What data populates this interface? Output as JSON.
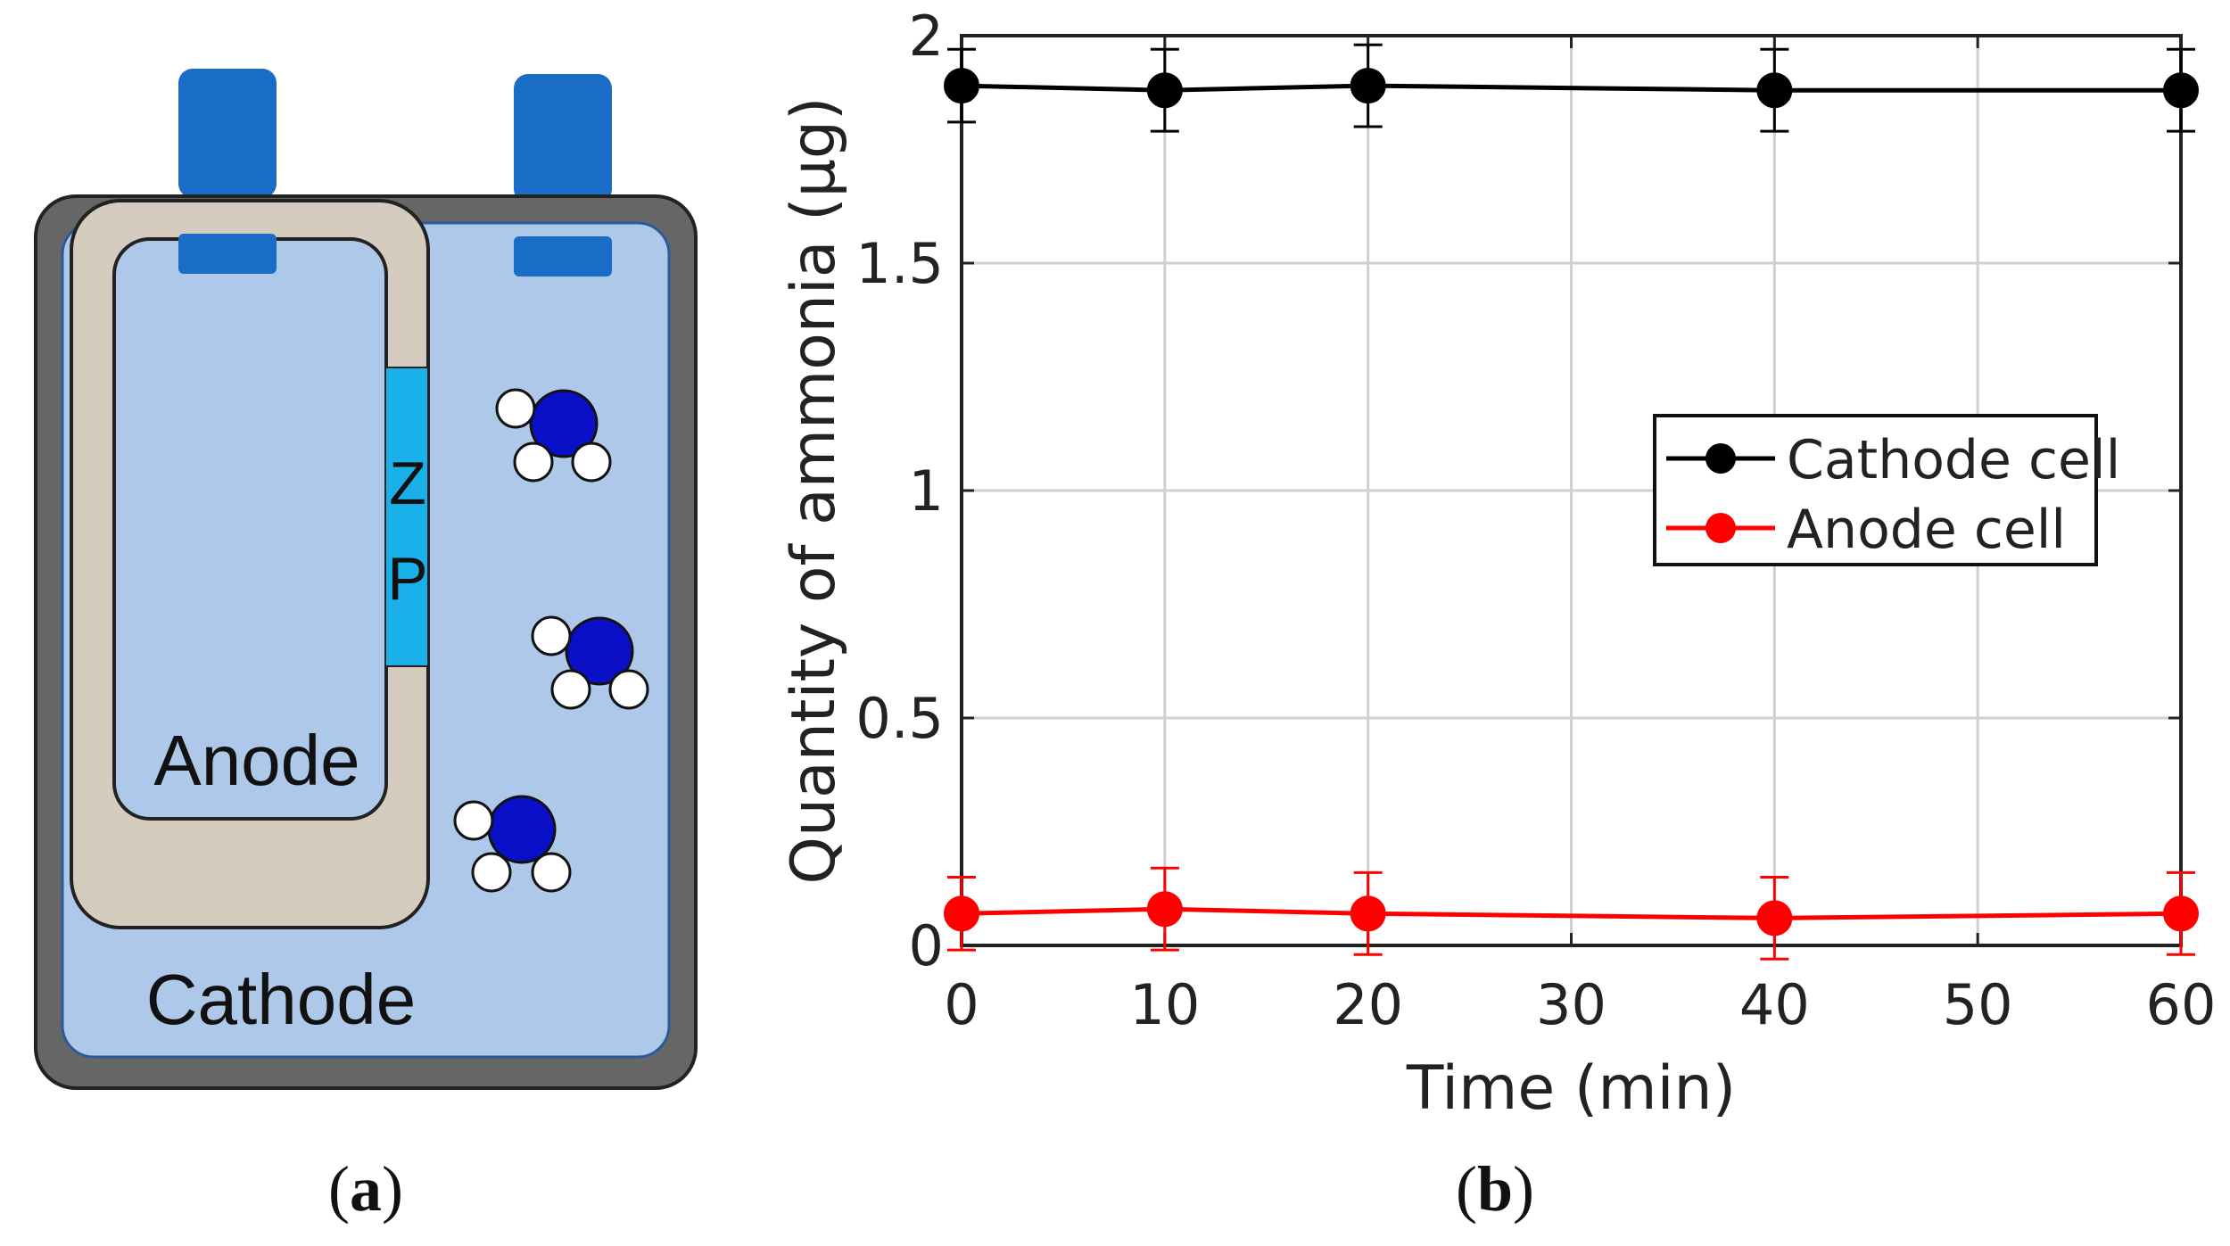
{
  "panel_a": {
    "caption_open": "(",
    "caption_letter": "a",
    "caption_close": ")",
    "labels": {
      "anode": "Anode",
      "cathode": "Cathode",
      "membrane_top": "Z",
      "membrane_bottom": "P"
    },
    "colors": {
      "case": "#666666",
      "electrolyte": "#aec8e9",
      "anode_wall": "#d6cbbf",
      "terminal": "#1a6dc6",
      "membrane": "#1ab0ea",
      "nitrogen_atom": "#0a10c8",
      "hydrogen_atom": "#ffffff"
    },
    "icons": [
      "ammonia-molecule-icon"
    ]
  },
  "panel_b": {
    "caption_open": "(",
    "caption_letter": "b",
    "caption_close": ")"
  },
  "chart_data": {
    "type": "line",
    "title": "",
    "xlabel": "Time (min)",
    "ylabel": "Quantity of ammonia  (μg)",
    "xlim": [
      0,
      60
    ],
    "ylim": [
      0,
      2
    ],
    "xticks": [
      0,
      10,
      20,
      30,
      40,
      50,
      60
    ],
    "xtick_labels": [
      "0",
      "10",
      "20",
      "30",
      "40",
      "50",
      "60"
    ],
    "yticks": [
      0,
      0.5,
      1,
      1.5,
      2
    ],
    "ytick_labels": [
      "0",
      "0.5",
      "1",
      "1.5",
      "2"
    ],
    "grid": true,
    "legend_position": "center-right",
    "x": [
      0,
      10,
      20,
      40,
      60
    ],
    "series": [
      {
        "name": "Cathode cell",
        "color": "#000000",
        "values": [
          1.89,
          1.88,
          1.89,
          1.88,
          1.88
        ],
        "error": [
          0.08,
          0.09,
          0.09,
          0.09,
          0.09
        ]
      },
      {
        "name": "Anode cell",
        "color": "#ff0000",
        "values": [
          0.07,
          0.08,
          0.07,
          0.06,
          0.07
        ],
        "error": [
          0.08,
          0.09,
          0.09,
          0.09,
          0.09
        ]
      }
    ]
  }
}
